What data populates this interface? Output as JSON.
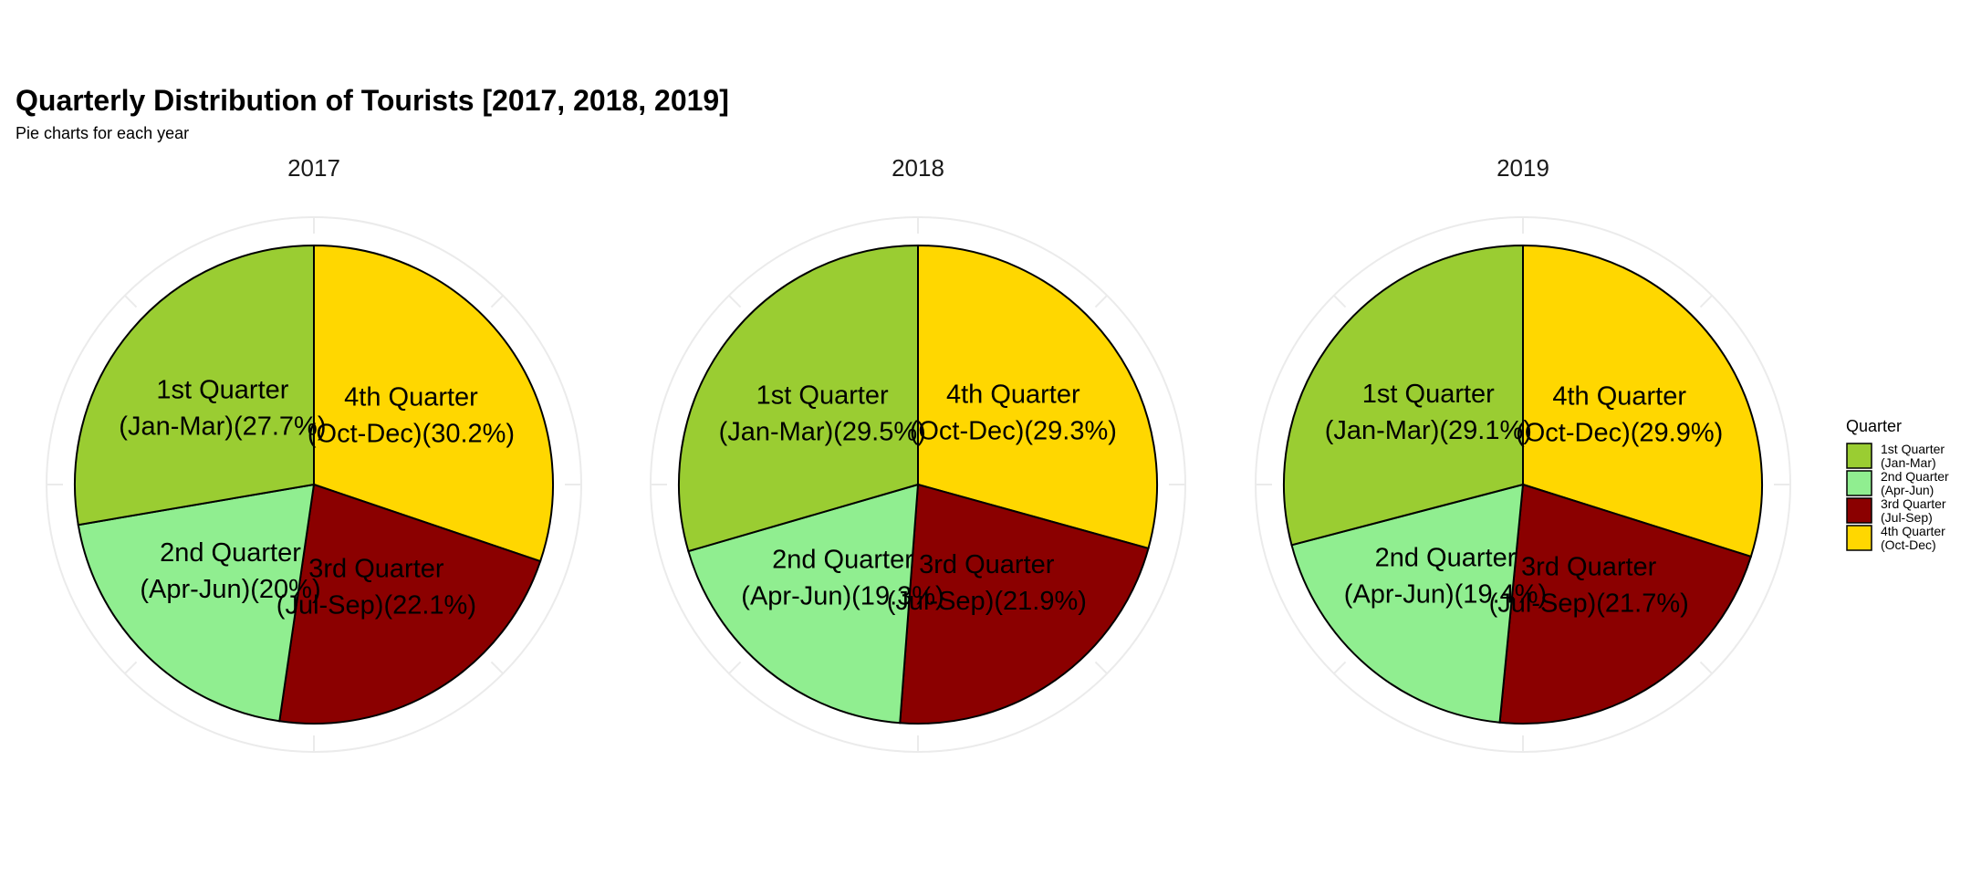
{
  "chart_data": {
    "type": "pie",
    "title": "Quarterly Distribution of Tourists [2017, 2018, 2019]",
    "subtitle": "Pie charts for each year",
    "legend": {
      "title": "Quarter",
      "placement": "right",
      "entries": [
        {
          "line1": "1st Quarter",
          "line2": "(Jan-Mar)",
          "color": "#9ACD32"
        },
        {
          "line1": "2nd Quarter",
          "line2": "(Apr-Jun)",
          "color": "#90EE90"
        },
        {
          "line1": "3rd Quarter",
          "line2": "(Jul-Sep)",
          "color": "#8B0000"
        },
        {
          "line1": "4th Quarter",
          "line2": "(Oct-Dec)",
          "color": "#FFD700"
        }
      ]
    },
    "categories": [
      "1st Quarter (Jan-Mar)",
      "2nd Quarter (Apr-Jun)",
      "3rd Quarter (Jul-Sep)",
      "4th Quarter (Oct-Dec)"
    ],
    "pies": [
      {
        "facet": "2017",
        "values": [
          27.7,
          20,
          22.1,
          30.2
        ],
        "labels": [
          [
            "1st Quarter",
            "(Jan-Mar)(27.7%)"
          ],
          [
            "2nd Quarter",
            "(Apr-Jun)(20%)"
          ],
          [
            "3rd Quarter",
            "(Jul-Sep)(22.1%)"
          ],
          [
            "4th Quarter",
            "(Oct-Dec)(30.2%)"
          ]
        ]
      },
      {
        "facet": "2018",
        "values": [
          29.5,
          19.3,
          21.9,
          29.3
        ],
        "labels": [
          [
            "1st Quarter",
            "(Jan-Mar)(29.5%)"
          ],
          [
            "2nd Quarter",
            "(Apr-Jun)(19.3%)"
          ],
          [
            "3rd Quarter",
            "(Jul-Sep)(21.9%)"
          ],
          [
            "4th Quarter",
            "(Oct-Dec)(29.3%)"
          ]
        ]
      },
      {
        "facet": "2019",
        "values": [
          29.1,
          19.4,
          21.7,
          29.9
        ],
        "labels": [
          [
            "1st Quarter",
            "(Jan-Mar)(29.1%)"
          ],
          [
            "2nd Quarter",
            "(Apr-Jun)(19.4%)"
          ],
          [
            "3rd Quarter",
            "(Jul-Sep)(21.7%)"
          ],
          [
            "4th Quarter",
            "(Oct-Dec)(29.9%)"
          ]
        ]
      }
    ],
    "grid": true,
    "slice_border_color": "#000000",
    "grid_color": "#EBEBEB"
  }
}
